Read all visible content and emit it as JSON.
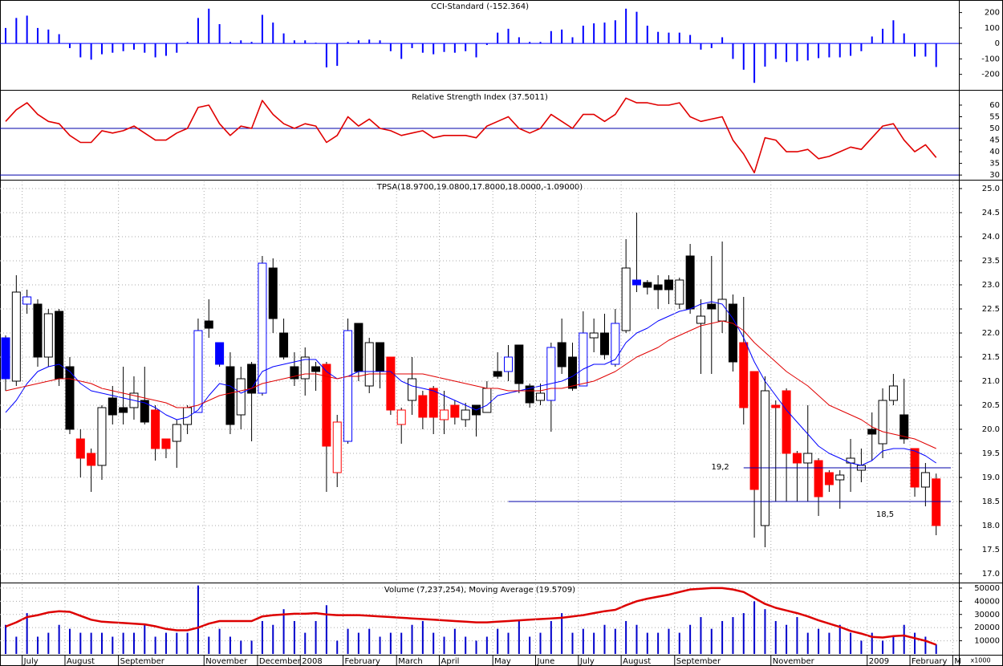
{
  "chart_data": [
    {
      "type": "bar",
      "title": "CCI-Standard (-152.364)",
      "color": "#0000ff",
      "zero_line": true,
      "ylim": [
        -290,
        250
      ],
      "yticks": [
        200,
        100,
        0,
        -100,
        -200
      ],
      "values": [
        100,
        165,
        180,
        100,
        90,
        60,
        -30,
        -90,
        -105,
        -70,
        -60,
        -50,
        -40,
        -60,
        -90,
        -80,
        -60,
        10,
        165,
        225,
        125,
        10,
        20,
        10,
        185,
        135,
        65,
        20,
        20,
        5,
        -155,
        -145,
        10,
        20,
        25,
        20,
        -50,
        -100,
        -30,
        -60,
        -70,
        -55,
        -60,
        -50,
        -90,
        -10,
        70,
        95,
        40,
        10,
        10,
        80,
        90,
        40,
        115,
        130,
        135,
        150,
        225,
        205,
        115,
        75,
        70,
        70,
        55,
        -40,
        -30,
        40,
        -100,
        -170,
        -255,
        -150,
        -100,
        -120,
        -115,
        -110,
        -95,
        -90,
        -90,
        -80,
        -50,
        45,
        95,
        150,
        65,
        -85,
        -85,
        -152.364,
        null,
        null
      ]
    },
    {
      "type": "line",
      "title": "Relative Strength Index (37.5011)",
      "color": "#e00000",
      "ylim": [
        28.5,
        65.5
      ],
      "yticks": [
        60,
        55,
        50,
        45,
        40,
        35,
        30
      ],
      "levels": [
        50,
        30
      ],
      "level_color": "#0000aa",
      "values": [
        53,
        58,
        61,
        56,
        53,
        52,
        47,
        44,
        44,
        49,
        48,
        49,
        51,
        48,
        45,
        45,
        48,
        50,
        59,
        60,
        52,
        47,
        51,
        50,
        62,
        56,
        52,
        50,
        52,
        51,
        44,
        47,
        55,
        51,
        54,
        50,
        49,
        47,
        48,
        49,
        46,
        47,
        47,
        47,
        46,
        51,
        53,
        55,
        50,
        48,
        50,
        56,
        53,
        50,
        56,
        56,
        53,
        56,
        63,
        61,
        61,
        60,
        60,
        61,
        55,
        53,
        54,
        55,
        45,
        39,
        31,
        46,
        45,
        40,
        40,
        41,
        37,
        38,
        40,
        42,
        41,
        46,
        51,
        52,
        45,
        40,
        43,
        37.5011,
        null,
        null
      ]
    },
    {
      "type": "candlestick",
      "title": "TPSA(18.9700,19.0800,17.8000,18.0000,-1.09000)",
      "grid": true,
      "ylim": [
        16.85,
        25.15
      ],
      "yticks": [
        {
          "value": 25,
          "label": "25.0"
        },
        24.5,
        {
          "value": 24,
          "label": "24.0"
        },
        23.5,
        {
          "value": 23,
          "label": "23.0"
        },
        22.5,
        {
          "value": 22,
          "label": "22.0"
        },
        21.5,
        {
          "value": 21,
          "label": "21.0"
        },
        20.5,
        {
          "value": 20,
          "label": "20.0"
        },
        19.5,
        {
          "value": 19,
          "label": "19.0"
        },
        18.5,
        {
          "value": 18,
          "label": "18.0"
        },
        17.5,
        {
          "value": 17,
          "label": "17.0"
        }
      ],
      "open": [
        21.9,
        21.0,
        22.6,
        22.6,
        21.5,
        22.45,
        21.3,
        19.8,
        19.5,
        19.25,
        20.65,
        20.45,
        20.45,
        20.6,
        20.4,
        19.8,
        19.75,
        20.1,
        20.35,
        22.25,
        21.8,
        21.3,
        20.3,
        21.35,
        20.75,
        23.35,
        22.0,
        21.3,
        21.05,
        21.3,
        21.35,
        19.1,
        19.75,
        22.2,
        20.9,
        21.8,
        21.5,
        20.1,
        20.6,
        20.7,
        20.85,
        20.2,
        20.5,
        20.2,
        20.5,
        20.35,
        21.2,
        21.2,
        21.75,
        20.9,
        20.6,
        20.6,
        21.8,
        21.5,
        20.9,
        21.9,
        22.0,
        21.35,
        22.05,
        23.1,
        23.05,
        23.0,
        23.1,
        22.6,
        23.6,
        22.2,
        22.6,
        22.25,
        22.6,
        21.8,
        21.2,
        18.0,
        20.5,
        20.8,
        19.5,
        19.3,
        19.35,
        19.1,
        18.95,
        19.3,
        19.15,
        20.0,
        19.7,
        20.6,
        20.3,
        19.6,
        18.8,
        18.97,
        null,
        null
      ],
      "high": [
        21.95,
        23.2,
        22.9,
        22.7,
        22.5,
        22.5,
        21.5,
        20.0,
        19.6,
        20.5,
        20.9,
        21.3,
        21.1,
        21.3,
        20.5,
        19.8,
        20.2,
        20.5,
        22.3,
        22.7,
        21.8,
        21.6,
        21.3,
        21.4,
        23.6,
        23.55,
        22.3,
        21.6,
        21.7,
        21.4,
        21.4,
        20.3,
        22.3,
        22.2,
        21.9,
        21.8,
        21.5,
        20.45,
        21.5,
        20.8,
        20.9,
        20.8,
        20.6,
        20.55,
        20.5,
        21.0,
        21.6,
        21.75,
        21.75,
        20.95,
        20.95,
        21.8,
        22.3,
        21.8,
        22.45,
        22.3,
        22.4,
        22.5,
        23.95,
        24.5,
        23.1,
        23.2,
        23.2,
        23.15,
        23.85,
        22.7,
        23.6,
        23.9,
        22.8,
        22.75,
        21.2,
        21.1,
        20.6,
        20.85,
        19.55,
        20.5,
        19.4,
        19.15,
        19.15,
        19.8,
        19.6,
        20.35,
        20.85,
        21.15,
        21.05,
        19.6,
        19.3,
        19.08,
        null,
        null
      ],
      "low": [
        20.8,
        20.9,
        22.4,
        21.3,
        21.3,
        20.9,
        19.9,
        19.0,
        18.7,
        18.95,
        20.1,
        20.1,
        20.2,
        20.1,
        19.35,
        19.4,
        19.2,
        19.9,
        20.35,
        21.9,
        21.3,
        19.9,
        20.0,
        19.75,
        20.7,
        22.0,
        21.45,
        20.9,
        20.7,
        20.8,
        18.7,
        18.8,
        19.7,
        21.0,
        20.75,
        20.85,
        20.3,
        19.7,
        20.3,
        20.0,
        19.9,
        19.9,
        20.1,
        20.05,
        19.85,
        20.35,
        21.05,
        21.0,
        20.75,
        20.45,
        20.5,
        19.95,
        21.15,
        20.8,
        20.9,
        21.6,
        21.45,
        21.3,
        22.0,
        22.85,
        22.8,
        22.5,
        22.6,
        22.5,
        22.4,
        21.15,
        21.15,
        22.0,
        21.2,
        20.1,
        17.75,
        17.55,
        18.5,
        18.5,
        18.5,
        18.5,
        18.2,
        18.7,
        18.35,
        18.7,
        18.9,
        19.35,
        19.4,
        20.5,
        19.7,
        18.6,
        18.4,
        17.8,
        null,
        null
      ],
      "close": [
        21.05,
        22.85,
        22.75,
        21.5,
        22.4,
        21.05,
        20.0,
        19.4,
        19.25,
        20.45,
        20.3,
        20.35,
        20.75,
        20.15,
        19.6,
        19.6,
        20.1,
        20.45,
        22.05,
        22.1,
        21.35,
        20.1,
        21.05,
        20.75,
        23.45,
        22.3,
        21.5,
        21.05,
        21.5,
        21.2,
        19.65,
        20.15,
        22.05,
        21.2,
        21.8,
        21.2,
        20.4,
        20.4,
        21.05,
        20.25,
        20.25,
        20.4,
        20.25,
        20.4,
        20.3,
        20.85,
        21.1,
        21.5,
        20.95,
        20.55,
        20.75,
        21.7,
        21.3,
        20.85,
        22.0,
        22.0,
        21.55,
        22.2,
        23.35,
        23.0,
        22.95,
        22.9,
        22.9,
        23.1,
        22.5,
        22.35,
        22.5,
        22.7,
        21.4,
        20.45,
        18.75,
        20.8,
        20.45,
        19.5,
        19.3,
        19.5,
        18.6,
        18.85,
        19.05,
        19.4,
        19.25,
        19.9,
        20.6,
        20.9,
        19.8,
        18.8,
        19.1,
        18.0,
        null,
        null
      ],
      "colors": [
        "#00f",
        "#000",
        "#00f",
        "#000",
        "#000",
        "#000",
        "#000",
        "#f00",
        "#f00",
        "#000",
        "#000",
        "#000",
        "#000",
        "#000",
        "#f00",
        "#f00",
        "#000",
        "#000",
        "#00f",
        "#000",
        "#00f",
        "#000",
        "#000",
        "#000",
        "#00f",
        "#000",
        "#000",
        "#000",
        "#000",
        "#000",
        "#f00",
        "#f00",
        "#00f",
        "#000",
        "#000",
        "#000",
        "#f00",
        "#f00",
        "#000",
        "#f00",
        "#f00",
        "#f00",
        "#f00",
        "#000",
        "#000",
        "#000",
        "#000",
        "#00f",
        "#000",
        "#000",
        "#000",
        "#00f",
        "#000",
        "#000",
        "#00f",
        "#000",
        "#000",
        "#00f",
        "#000",
        "#00f",
        "#000",
        "#000",
        "#000",
        "#000",
        "#000",
        "#000",
        "#000",
        "#000",
        "#000",
        "#f00",
        "#f00",
        "#000",
        "#f00",
        "#f00",
        "#f00",
        "#000",
        "#f00",
        "#f00",
        "#000",
        "#000",
        "#000",
        "#000",
        "#000",
        "#000",
        "#000",
        "#f00",
        "#000",
        "#f00",
        null,
        null
      ],
      "series": [
        {
          "color": "#0000ff",
          "values": [
            20.35,
            20.6,
            20.95,
            21.2,
            21.3,
            21.35,
            21.2,
            20.95,
            20.8,
            20.75,
            20.7,
            20.65,
            20.6,
            20.55,
            20.45,
            20.3,
            20.2,
            20.25,
            20.4,
            20.7,
            20.95,
            20.9,
            20.75,
            20.85,
            21.2,
            21.3,
            21.35,
            21.4,
            21.45,
            21.45,
            21.2,
            21.05,
            21.1,
            21.2,
            21.2,
            21.2,
            21.2,
            21.0,
            20.9,
            20.85,
            20.8,
            20.7,
            20.6,
            20.5,
            20.4,
            20.5,
            20.7,
            20.75,
            20.8,
            20.85,
            20.9,
            20.95,
            21.0,
            21.1,
            21.25,
            21.35,
            21.35,
            21.45,
            21.8,
            22.0,
            22.1,
            22.25,
            22.35,
            22.45,
            22.5,
            22.6,
            22.65,
            22.6,
            22.3,
            21.9,
            21.4,
            21.0,
            20.7,
            20.4,
            20.15,
            19.9,
            19.65,
            19.5,
            19.4,
            19.3,
            19.25,
            19.35,
            19.55,
            19.6,
            19.6,
            19.55,
            19.45,
            19.3,
            null,
            null
          ]
        },
        {
          "color": "#e00000",
          "values": [
            20.8,
            20.85,
            20.9,
            20.95,
            21.0,
            21.05,
            21.05,
            21.0,
            20.95,
            20.85,
            20.8,
            20.75,
            20.7,
            20.65,
            20.6,
            20.55,
            20.45,
            20.45,
            20.5,
            20.6,
            20.7,
            20.75,
            20.8,
            20.85,
            20.95,
            21.0,
            21.05,
            21.1,
            21.15,
            21.15,
            21.1,
            21.05,
            21.1,
            21.1,
            21.15,
            21.15,
            21.15,
            21.15,
            21.15,
            21.15,
            21.1,
            21.05,
            21.0,
            20.95,
            20.9,
            20.85,
            20.85,
            20.8,
            20.8,
            20.8,
            20.8,
            20.85,
            20.85,
            20.9,
            20.95,
            21.0,
            21.1,
            21.2,
            21.35,
            21.5,
            21.6,
            21.7,
            21.85,
            21.95,
            22.05,
            22.15,
            22.2,
            22.25,
            22.2,
            22.05,
            21.8,
            21.6,
            21.4,
            21.2,
            21.05,
            20.9,
            20.7,
            20.5,
            20.4,
            20.3,
            20.2,
            20.05,
            19.95,
            19.9,
            19.85,
            19.8,
            19.7,
            19.6,
            null,
            null
          ]
        }
      ],
      "annotation_color": "#0000aa",
      "annotations": [
        {
          "text": "19,2",
          "value": 19.2,
          "from": 69
        },
        {
          "text": "18,5",
          "value": 18.5,
          "from": 47
        }
      ]
    },
    {
      "type": "bar",
      "title": "Volume (7,237,254), Moving Average (19.5709)",
      "color": "#0000cc",
      "grid": true,
      "unit_label": "x1000",
      "ylim": [
        0,
        53000
      ],
      "yticks": [
        50000,
        40000,
        30000,
        20000,
        10000
      ],
      "categories": [
        null,
        null,
        "July",
        null,
        null,
        null,
        "August",
        null,
        null,
        null,
        null,
        "September",
        null,
        null,
        null,
        null,
        null,
        null,
        null,
        "November",
        null,
        null,
        null,
        null,
        "December",
        null,
        null,
        null,
        "2008",
        null,
        null,
        null,
        "February",
        null,
        null,
        null,
        null,
        "March",
        null,
        null,
        null,
        "April",
        null,
        null,
        null,
        null,
        "May",
        null,
        null,
        null,
        "June",
        null,
        null,
        null,
        "July",
        null,
        null,
        null,
        "August",
        null,
        null,
        null,
        null,
        "September",
        null,
        null,
        null,
        null,
        null,
        null,
        null,
        null,
        "November",
        null,
        null,
        null,
        null,
        null,
        null,
        null,
        null,
        "2009",
        null,
        null,
        null,
        "February",
        null,
        null,
        null,
        "M"
      ],
      "values": [
        22100,
        13100,
        31000,
        13100,
        16100,
        22100,
        19100,
        16100,
        16100,
        16100,
        13100,
        16100,
        16100,
        22100,
        13100,
        16100,
        16100,
        16100,
        52000,
        13100,
        19100,
        13100,
        10100,
        10100,
        25000,
        22100,
        34000,
        25000,
        16100,
        25000,
        37000,
        10100,
        19100,
        16100,
        19100,
        13100,
        16100,
        16100,
        22100,
        25000,
        16100,
        13100,
        19100,
        13100,
        10100,
        13100,
        19100,
        16100,
        25000,
        13100,
        16100,
        25000,
        31000,
        16100,
        19100,
        16100,
        22100,
        19100,
        25000,
        22100,
        16100,
        16100,
        19100,
        16100,
        22100,
        28000,
        19100,
        25000,
        28000,
        31000,
        40000,
        34000,
        25000,
        22100,
        28000,
        16100,
        19100,
        16100,
        22100,
        16100,
        10100,
        16100,
        10100,
        13100,
        22100,
        16100,
        13100,
        7237.254,
        null,
        null
      ],
      "series": [
        {
          "color": "#dd0000",
          "values": [
            20800,
            24000,
            28000,
            29500,
            31500,
            32500,
            32000,
            29000,
            26000,
            24500,
            24000,
            23500,
            23000,
            22500,
            21000,
            19000,
            18000,
            18000,
            20000,
            23000,
            25000,
            25000,
            25000,
            25000,
            28500,
            29500,
            30000,
            30500,
            30500,
            31000,
            30000,
            29500,
            29500,
            29500,
            29000,
            28500,
            28000,
            27500,
            27000,
            26500,
            26000,
            25500,
            25000,
            24500,
            24000,
            24000,
            24500,
            25000,
            25500,
            26000,
            26500,
            27000,
            27500,
            28500,
            29500,
            31000,
            32500,
            33500,
            37000,
            40000,
            42000,
            43500,
            45000,
            47000,
            49000,
            49500,
            50000,
            50000,
            49000,
            47000,
            42500,
            38000,
            35000,
            33000,
            31000,
            28500,
            25500,
            23000,
            20500,
            17500,
            15500,
            13000,
            12500,
            13500,
            14000,
            12000,
            10000,
            7000,
            null,
            null
          ]
        }
      ]
    }
  ]
}
